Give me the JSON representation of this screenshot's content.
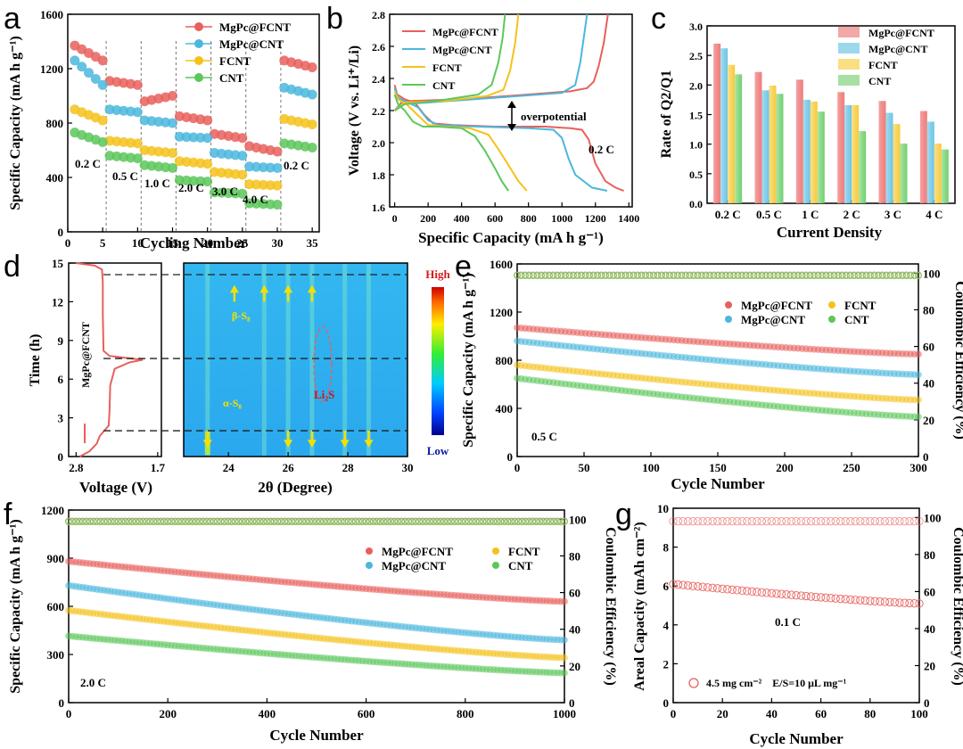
{
  "colors": {
    "MgPc@FCNT": "#e8605c",
    "MgPc@CNT": "#4bb7dd",
    "FCNT": "#f5c21b",
    "CNT": "#5cc75a"
  },
  "series_names": [
    "MgPc@FCNT",
    "MgPc@CNT",
    "FCNT",
    "CNT"
  ],
  "chart_data": [
    {
      "panel": "a",
      "type": "scatter",
      "xlabel": "Cycling Number",
      "ylabel": "Specific Capacity (mA h g⁻¹)",
      "xlim": [
        0,
        36
      ],
      "ylim": [
        0,
        1600
      ],
      "xticks": [
        "0",
        "5",
        "10",
        "15",
        "20",
        "25",
        "30",
        "35"
      ],
      "yticks": [
        "0",
        "400",
        "800",
        "1200",
        "1600"
      ],
      "rate_labels": [
        "0.2 C",
        "0.5 C",
        "1.0 C",
        "2.0 C",
        "3.0 C",
        "4.0 C",
        "0.2 C"
      ],
      "segment_boundaries": [
        5.5,
        10.5,
        15.5,
        20.5,
        25.5,
        30.5
      ],
      "series": [
        {
          "name": "MgPc@FCNT",
          "levels": [
            [
              1370,
              1260
            ],
            [
              1110,
              1080
            ],
            [
              960,
              1000
            ],
            [
              850,
              820
            ],
            [
              720,
              690
            ],
            [
              630,
              590
            ],
            [
              1260,
              1210
            ]
          ]
        },
        {
          "name": "MgPc@CNT",
          "levels": [
            [
              1260,
              1080
            ],
            [
              900,
              880
            ],
            [
              820,
              800
            ],
            [
              700,
              690
            ],
            [
              580,
              560
            ],
            [
              480,
              470
            ],
            [
              1060,
              1010
            ]
          ]
        },
        {
          "name": "FCNT",
          "levels": [
            [
              900,
              820
            ],
            [
              670,
              650
            ],
            [
              600,
              580
            ],
            [
              520,
              500
            ],
            [
              440,
              420
            ],
            [
              350,
              340
            ],
            [
              830,
              790
            ]
          ]
        },
        {
          "name": "CNT",
          "levels": [
            [
              730,
              660
            ],
            [
              560,
              540
            ],
            [
              490,
              470
            ],
            [
              380,
              370
            ],
            [
              290,
              280
            ],
            [
              210,
              200
            ],
            [
              650,
              620
            ]
          ]
        }
      ]
    },
    {
      "panel": "b",
      "type": "line",
      "xlabel": "Specific Capacity (mA h g⁻¹)",
      "ylabel": "Voltage (V vs. Li⁺/Li)",
      "xlim": [
        -30,
        1420
      ],
      "ylim": [
        1.6,
        2.8
      ],
      "xticks": [
        "0",
        "200",
        "400",
        "600",
        "800",
        "1000",
        "1200",
        "1400"
      ],
      "yticks": [
        "1.6",
        "1.8",
        "2.0",
        "2.2",
        "2.4",
        "2.6",
        "2.8"
      ],
      "annotations": [
        "overpotential",
        "0.2 C"
      ],
      "series": [
        {
          "name": "MgPc@FCNT",
          "discharge": [
            [
              0,
              2.36
            ],
            [
              15,
              2.3
            ],
            [
              60,
              2.27
            ],
            [
              120,
              2.25
            ],
            [
              180,
              2.17
            ],
            [
              230,
              2.12
            ],
            [
              350,
              2.11
            ],
            [
              600,
              2.1
            ],
            [
              900,
              2.1
            ],
            [
              1050,
              2.09
            ],
            [
              1120,
              2.08
            ],
            [
              1160,
              2.02
            ],
            [
              1200,
              1.87
            ],
            [
              1260,
              1.76
            ],
            [
              1320,
              1.72
            ],
            [
              1370,
              1.7
            ]
          ],
          "charge": [
            [
              0,
              2.2
            ],
            [
              40,
              2.25
            ],
            [
              100,
              2.26
            ],
            [
              400,
              2.27
            ],
            [
              800,
              2.3
            ],
            [
              1050,
              2.32
            ],
            [
              1150,
              2.34
            ],
            [
              1190,
              2.38
            ],
            [
              1220,
              2.48
            ],
            [
              1250,
              2.62
            ],
            [
              1275,
              2.8
            ]
          ]
        },
        {
          "name": "MgPc@CNT",
          "discharge": [
            [
              0,
              2.34
            ],
            [
              20,
              2.28
            ],
            [
              80,
              2.25
            ],
            [
              140,
              2.22
            ],
            [
              200,
              2.14
            ],
            [
              260,
              2.11
            ],
            [
              500,
              2.1
            ],
            [
              800,
              2.09
            ],
            [
              950,
              2.08
            ],
            [
              1000,
              2.03
            ],
            [
              1040,
              1.9
            ],
            [
              1080,
              1.8
            ],
            [
              1180,
              1.72
            ],
            [
              1270,
              1.7
            ]
          ],
          "charge": [
            [
              0,
              2.2
            ],
            [
              40,
              2.24
            ],
            [
              200,
              2.25
            ],
            [
              600,
              2.28
            ],
            [
              1000,
              2.31
            ],
            [
              1080,
              2.36
            ],
            [
              1110,
              2.5
            ],
            [
              1130,
              2.65
            ],
            [
              1150,
              2.8
            ]
          ]
        },
        {
          "name": "FCNT",
          "discharge": [
            [
              0,
              2.32
            ],
            [
              20,
              2.27
            ],
            [
              70,
              2.24
            ],
            [
              130,
              2.18
            ],
            [
              200,
              2.11
            ],
            [
              300,
              2.1
            ],
            [
              450,
              2.09
            ],
            [
              560,
              2.05
            ],
            [
              620,
              1.96
            ],
            [
              680,
              1.86
            ],
            [
              740,
              1.76
            ],
            [
              790,
              1.7
            ]
          ],
          "charge": [
            [
              0,
              2.2
            ],
            [
              60,
              2.25
            ],
            [
              300,
              2.26
            ],
            [
              550,
              2.29
            ],
            [
              650,
              2.33
            ],
            [
              690,
              2.45
            ],
            [
              720,
              2.62
            ],
            [
              740,
              2.8
            ]
          ]
        },
        {
          "name": "CNT",
          "discharge": [
            [
              0,
              2.3
            ],
            [
              20,
              2.24
            ],
            [
              60,
              2.2
            ],
            [
              110,
              2.13
            ],
            [
              170,
              2.1
            ],
            [
              260,
              2.1
            ],
            [
              400,
              2.09
            ],
            [
              480,
              2.04
            ],
            [
              540,
              1.95
            ],
            [
              600,
              1.84
            ],
            [
              640,
              1.76
            ],
            [
              680,
              1.7
            ]
          ],
          "charge": [
            [
              0,
              2.2
            ],
            [
              60,
              2.24
            ],
            [
              250,
              2.26
            ],
            [
              500,
              2.3
            ],
            [
              580,
              2.36
            ],
            [
              620,
              2.5
            ],
            [
              645,
              2.65
            ],
            [
              660,
              2.8
            ]
          ]
        }
      ]
    },
    {
      "panel": "c",
      "type": "bar",
      "xlabel": "Current Density",
      "ylabel": "Rate of Q2/Q1",
      "ylim": [
        0,
        3.0
      ],
      "yticks": [
        "0.0",
        "0.5",
        "1.0",
        "1.5",
        "2.0",
        "2.5",
        "3.0"
      ],
      "categories": [
        "0.2 C",
        "0.5 C",
        "1 C",
        "2 C",
        "3 C",
        "4 C"
      ],
      "series": [
        {
          "name": "MgPc@FCNT",
          "values": [
            2.7,
            2.22,
            2.09,
            1.88,
            1.73,
            1.56
          ]
        },
        {
          "name": "MgPc@CNT",
          "values": [
            2.62,
            1.91,
            1.75,
            1.66,
            1.53,
            1.38
          ]
        },
        {
          "name": "FCNT",
          "values": [
            2.34,
            1.99,
            1.72,
            1.66,
            1.34,
            1.01
          ]
        },
        {
          "name": "CNT",
          "values": [
            2.18,
            1.85,
            1.55,
            1.22,
            1.01,
            0.91
          ]
        }
      ]
    },
    {
      "panel": "d",
      "type": "heatmap",
      "xlabel_left": "Voltage (V)",
      "xlabel_right": "2θ (Degree)",
      "ylabel": "Time (h)",
      "sample_label": "MgPc@FCNT",
      "ylim": [
        0,
        15
      ],
      "yticks": [
        "0",
        "3",
        "6",
        "9",
        "12",
        "15"
      ],
      "voltage_ticks": [
        "2.8",
        "1.7"
      ],
      "theta_range": [
        22.5,
        30
      ],
      "theta_ticks": [
        "24",
        "26",
        "28",
        "30"
      ],
      "colorbar_high": "High",
      "colorbar_low": "Low",
      "labels": {
        "beta": "β-S₈",
        "alpha": "α-S₈",
        "li2s": "Li₂S"
      },
      "dashed_times": [
        2.0,
        7.6,
        14.1
      ],
      "peak_positions": [
        23.3,
        25.2,
        26.0,
        26.8,
        27.9,
        28.7
      ],
      "voltage_curve": [
        [
          2.8,
          15.0
        ],
        [
          2.55,
          14.8
        ],
        [
          2.45,
          14.5
        ],
        [
          2.44,
          13.5
        ],
        [
          2.44,
          11.0
        ],
        [
          2.43,
          8.2
        ],
        [
          2.35,
          7.8
        ],
        [
          2.05,
          7.6
        ],
        [
          1.9,
          7.5
        ],
        [
          2.08,
          7.3
        ],
        [
          2.28,
          6.8
        ],
        [
          2.34,
          5.5
        ],
        [
          2.35,
          3.5
        ],
        [
          2.36,
          2.4
        ],
        [
          2.42,
          2.0
        ],
        [
          2.48,
          1.6
        ],
        [
          2.52,
          1.0
        ],
        [
          2.62,
          0.4
        ],
        [
          2.75,
          0.0
        ]
      ]
    },
    {
      "panel": "e",
      "type": "scatter",
      "xlabel": "Cycle Number",
      "ylabel": "Specific Capacity (mA h g⁻¹)",
      "ylabel_right": "Coulombic Efficiency (%)",
      "rate_label": "0.5 C",
      "xlim": [
        0,
        300
      ],
      "ylim": [
        0,
        1600
      ],
      "ylim_right": [
        0,
        105
      ],
      "xticks": [
        "0",
        "50",
        "100",
        "150",
        "200",
        "250",
        "300"
      ],
      "yticks": [
        "0",
        "400",
        "800",
        "1200",
        "1600"
      ],
      "yticks_right": [
        "0",
        "20",
        "40",
        "60",
        "80",
        "100"
      ],
      "series": [
        {
          "name": "MgPc@FCNT",
          "start": 1070,
          "end": 850
        },
        {
          "name": "MgPc@CNT",
          "start": 960,
          "end": 680
        },
        {
          "name": "FCNT",
          "start": 760,
          "end": 470
        },
        {
          "name": "CNT",
          "start": 650,
          "end": 330
        }
      ],
      "coulombic_efficiency": 99
    },
    {
      "panel": "f",
      "type": "scatter",
      "xlabel": "Cycle Number",
      "ylabel": "Specific Capacity (mA h g⁻¹)",
      "ylabel_right": "Coulombic Efficiency (%)",
      "rate_label": "2.0 C",
      "xlim": [
        0,
        1000
      ],
      "ylim": [
        0,
        1200
      ],
      "ylim_right": [
        0,
        105
      ],
      "xticks": [
        "0",
        "200",
        "400",
        "600",
        "800",
        "1000"
      ],
      "yticks": [
        "0",
        "300",
        "600",
        "900",
        "1200"
      ],
      "yticks_right": [
        "0",
        "20",
        "40",
        "60",
        "80",
        "100"
      ],
      "series": [
        {
          "name": "MgPc@FCNT",
          "start": 880,
          "end": 630
        },
        {
          "name": "MgPc@CNT",
          "start": 730,
          "end": 390
        },
        {
          "name": "FCNT",
          "start": 575,
          "end": 280
        },
        {
          "name": "CNT",
          "start": 415,
          "end": 185
        }
      ],
      "coulombic_efficiency": 99
    },
    {
      "panel": "g",
      "type": "scatter",
      "xlabel": "Cycle Number",
      "ylabel": "Areal Capacity (mAh cm⁻²)",
      "ylabel_right": "Coulombic Efficiency (%)",
      "rate_label": "0.1 C",
      "legend_text": "4.5 mg cm⁻²    E/S=10 μL mg⁻¹",
      "xlim": [
        0,
        100
      ],
      "ylim": [
        0,
        10
      ],
      "ylim_right": [
        0,
        105
      ],
      "xticks": [
        "0",
        "20",
        "40",
        "60",
        "80",
        "100"
      ],
      "yticks": [
        "0",
        "2",
        "4",
        "6",
        "8",
        "10"
      ],
      "yticks_right": [
        "0",
        "20",
        "40",
        "60",
        "80",
        "100"
      ],
      "series": [
        {
          "name": "MgPc@FCNT",
          "start": 6.1,
          "end": 5.1
        }
      ],
      "coulombic_efficiency": 98
    }
  ]
}
